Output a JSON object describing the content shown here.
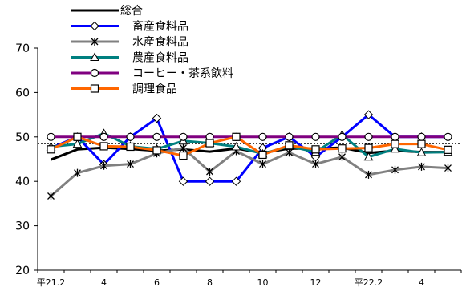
{
  "chart_data": {
    "type": "line",
    "title": "",
    "xlabel": "",
    "ylabel": "",
    "ylim": [
      20,
      70
    ],
    "yticks": [
      20,
      30,
      40,
      50,
      60,
      70
    ],
    "x_tick_labels": [
      "平21.2",
      "",
      "4",
      "",
      "6",
      "",
      "8",
      "",
      "10",
      "",
      "12",
      "",
      "平22.2",
      "",
      "4",
      ""
    ],
    "reference_line": 48.5,
    "legend_position": "top-left",
    "series": [
      {
        "name": "総合",
        "color": "#000000",
        "marker": "none",
        "values": [
          44.9,
          47.2,
          47.6,
          47.3,
          46.9,
          47.2,
          46.7,
          47.4,
          46.4,
          47.4,
          47.4,
          47.6,
          46.4,
          46.9,
          46.6,
          46.6
        ]
      },
      {
        "name": "畜産食料品",
        "color": "#0000ff",
        "marker": "diamond",
        "values": [
          47.5,
          50.0,
          43.8,
          50.0,
          54.2,
          40.0,
          40.0,
          40.0,
          47.5,
          50.0,
          45.5,
          50.0,
          55.0,
          50.0,
          50.0,
          50.0
        ]
      },
      {
        "name": "水産食料品",
        "color": "#808080",
        "marker": "star",
        "values": [
          36.7,
          41.9,
          43.5,
          43.9,
          46.3,
          47.5,
          42.2,
          46.8,
          43.9,
          46.5,
          43.9,
          45.5,
          41.5,
          42.6,
          43.3,
          43.0
        ]
      },
      {
        "name": "農産食料品",
        "color": "#008080",
        "marker": "triangle",
        "values": [
          47.8,
          48.4,
          50.8,
          47.9,
          47.3,
          49.1,
          48.6,
          47.8,
          46.2,
          47.9,
          46.6,
          50.5,
          45.5,
          47.3,
          46.5,
          46.6
        ]
      },
      {
        "name": "コーヒー・茶系飲料",
        "color": "#800080",
        "marker": "circle",
        "values": [
          50.0,
          50.0,
          50.0,
          50.0,
          50.0,
          50.0,
          50.0,
          50.0,
          50.0,
          50.0,
          50.0,
          50.0,
          50.0,
          50.0,
          50.0,
          50.0
        ]
      },
      {
        "name": "調理食品",
        "color": "#ff6600",
        "marker": "square",
        "values": [
          47.2,
          50.0,
          47.9,
          47.8,
          47.0,
          45.8,
          48.6,
          50.0,
          46.0,
          48.1,
          47.2,
          47.4,
          47.5,
          48.4,
          48.4,
          47.1
        ]
      }
    ]
  }
}
